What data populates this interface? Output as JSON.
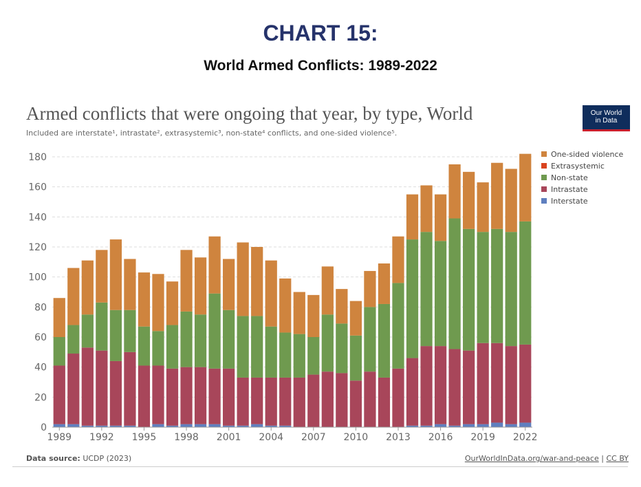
{
  "header": {
    "title": "CHART 15:",
    "subtitle": "World Armed Conflicts: 1989-2022"
  },
  "logo": {
    "line1": "Our World",
    "line2": "in Data"
  },
  "footer": {
    "source_label": "Data source:",
    "source_value": "UCDP (2023)",
    "link": "OurWorldInData.org/war-and-peace",
    "separator": "|",
    "license": "CC BY"
  },
  "chart_data": {
    "type": "bar",
    "stacked": true,
    "title": "Armed conflicts that were ongoing that year, by type, World",
    "subtitle": "Included are interstate¹, intrastate², extrasystemic³, non-state⁴ conflicts, and one-sided violence⁵.",
    "xlabel": "",
    "ylabel": "",
    "ylim": [
      0,
      180
    ],
    "yticks": [
      0,
      20,
      40,
      60,
      80,
      100,
      120,
      140,
      160,
      180
    ],
    "xtick_labels": [
      "1989",
      "1992",
      "1995",
      "1998",
      "2001",
      "2004",
      "2007",
      "2010",
      "2013",
      "2016",
      "2019",
      "2022"
    ],
    "grid": true,
    "legend_position": "right",
    "categories": [
      "1989",
      "1990",
      "1991",
      "1992",
      "1993",
      "1994",
      "1995",
      "1996",
      "1997",
      "1998",
      "1999",
      "2000",
      "2001",
      "2002",
      "2003",
      "2004",
      "2005",
      "2006",
      "2007",
      "2008",
      "2009",
      "2010",
      "2011",
      "2012",
      "2013",
      "2014",
      "2015",
      "2016",
      "2017",
      "2018",
      "2019",
      "2020",
      "2021",
      "2022"
    ],
    "series": [
      {
        "name": "Interstate",
        "color": "#5f7fbf",
        "values": [
          2,
          2,
          1,
          1,
          1,
          1,
          0,
          2,
          1,
          2,
          2,
          2,
          1,
          1,
          2,
          1,
          1,
          0,
          0,
          0,
          0,
          0,
          0,
          0,
          0,
          1,
          1,
          2,
          1,
          2,
          2,
          3,
          2,
          3
        ]
      },
      {
        "name": "Intrastate",
        "color": "#a8465a",
        "values": [
          39,
          47,
          52,
          50,
          43,
          49,
          41,
          39,
          38,
          38,
          38,
          37,
          38,
          32,
          31,
          32,
          32,
          33,
          35,
          37,
          36,
          31,
          37,
          33,
          39,
          45,
          53,
          52,
          51,
          49,
          54,
          53,
          52,
          52
        ]
      },
      {
        "name": "Extrasystemic",
        "color": "#d9431e",
        "values": [
          0,
          0,
          0,
          0,
          0,
          0,
          0,
          0,
          0,
          0,
          0,
          0,
          0,
          0,
          0,
          0,
          0,
          0,
          0,
          0,
          0,
          0,
          0,
          0,
          0,
          0,
          0,
          0,
          0,
          0,
          0,
          0,
          0,
          0
        ]
      },
      {
        "name": "Non-state",
        "color": "#6f9a4f",
        "values": [
          19,
          19,
          22,
          32,
          34,
          28,
          26,
          23,
          29,
          37,
          35,
          50,
          39,
          41,
          41,
          34,
          30,
          29,
          25,
          38,
          33,
          30,
          43,
          49,
          57,
          79,
          76,
          70,
          87,
          81,
          74,
          76,
          76,
          82
        ]
      },
      {
        "name": "One-sided violence",
        "color": "#cf843e",
        "values": [
          26,
          38,
          36,
          35,
          47,
          34,
          36,
          38,
          29,
          41,
          38,
          38,
          34,
          49,
          46,
          44,
          36,
          28,
          28,
          32,
          23,
          23,
          24,
          27,
          31,
          30,
          31,
          31,
          36,
          38,
          33,
          44,
          42,
          45
        ]
      }
    ],
    "legend_order": [
      "One-sided violence",
      "Extrasystemic",
      "Non-state",
      "Intrastate",
      "Interstate"
    ]
  }
}
